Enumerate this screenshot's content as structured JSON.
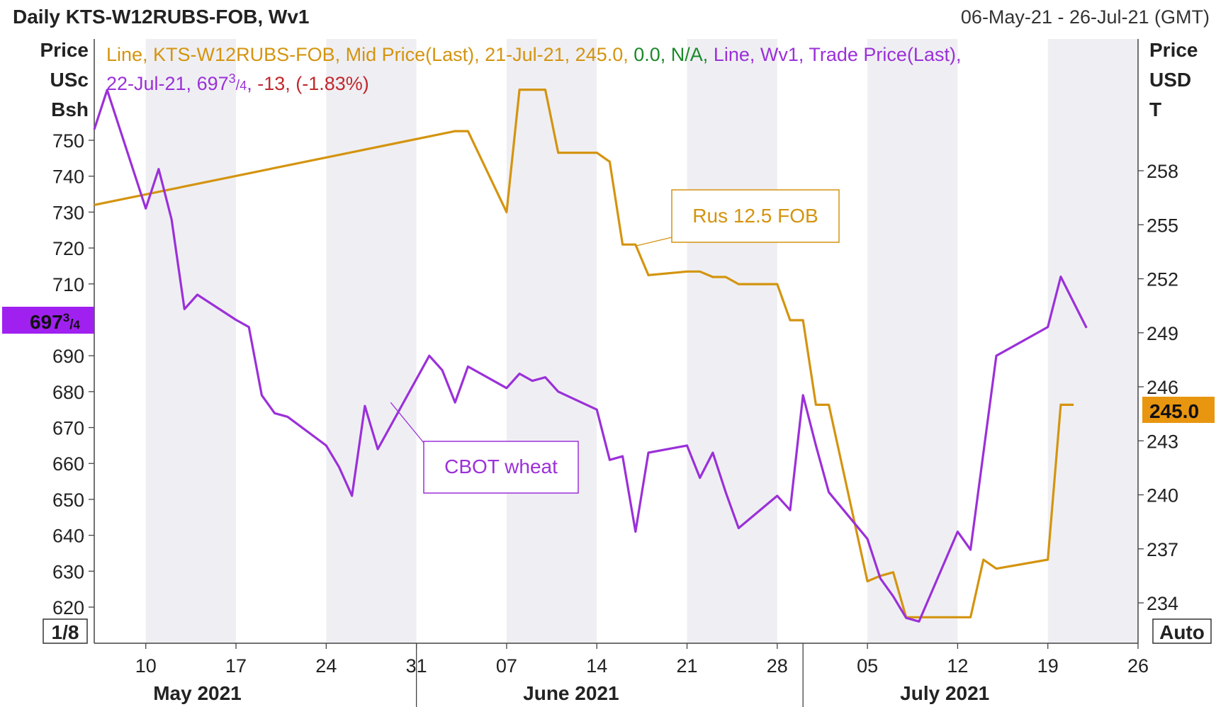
{
  "header": {
    "title": "Daily KTS-W12RUBS-FOB, Wv1",
    "date_range": "06-May-21 - 26-Jul-21 (GMT)"
  },
  "legend": {
    "line1": [
      {
        "text": "Line, KTS-W12RUBS-FOB, Mid Price(Last), 21-Jul-21, 245.0, ",
        "color": "#d4940f"
      },
      {
        "text": "0.0, N/A, ",
        "color": "#1a8a2a"
      },
      {
        "text": "Line, Wv1, Trade Price(Last),",
        "color": "#9b30d9"
      }
    ],
    "line2": [
      {
        "text": "22-Jul-21, 697",
        "color": "#9b30d9"
      },
      {
        "text": "-13, (-1.83%)",
        "color": "#c0282d"
      }
    ],
    "fraction_num": "3",
    "fraction_den": "4"
  },
  "left_axis": {
    "title_lines": [
      "Price",
      "USc",
      "Bsh"
    ],
    "corner_label": "1/8",
    "badge_int": "697",
    "badge_num": "3",
    "badge_den": "4",
    "badge_color": "#a020f0"
  },
  "right_axis": {
    "title_lines": [
      "Price",
      "USD",
      "T"
    ],
    "corner_label": "Auto",
    "badge": "245.0",
    "badge_color": "#e8950f"
  },
  "annotations": {
    "rus": "Rus 12.5 FOB",
    "cbot": "CBOT wheat"
  },
  "colors": {
    "wheat_line": "#9b30d9",
    "rus_line": "#d4940f",
    "band": "#efeff3",
    "axis": "#444444"
  },
  "chart_data": {
    "type": "line",
    "x_axis": {
      "range": [
        "2021-05-06",
        "2021-07-26"
      ],
      "tick_labels": [
        "10",
        "17",
        "24",
        "31",
        "07",
        "14",
        "21",
        "28",
        "05",
        "12",
        "19",
        "26"
      ],
      "tick_dates": [
        "2021-05-10",
        "2021-05-17",
        "2021-05-24",
        "2021-05-31",
        "2021-06-07",
        "2021-06-14",
        "2021-06-21",
        "2021-06-28",
        "2021-07-05",
        "2021-07-12",
        "2021-07-19",
        "2021-07-26"
      ],
      "month_labels": [
        "May 2021",
        "June 2021",
        "July 2021"
      ],
      "month_label_dates": [
        "2021-05-14",
        "2021-06-12",
        "2021-07-11"
      ],
      "month_boundaries": [
        "2021-05-31",
        "2021-06-30"
      ]
    },
    "left_axis": {
      "unit": "USc/Bsh",
      "ticks": [
        620,
        630,
        640,
        650,
        660,
        670,
        680,
        690,
        700,
        710,
        720,
        730,
        740,
        750
      ],
      "tick_labels": [
        "620",
        "630",
        "640",
        "650",
        "660",
        "670",
        "680",
        "690",
        "",
        "710",
        "720",
        "730",
        "740",
        "750"
      ]
    },
    "right_axis": {
      "unit": "USD/T",
      "ticks": [
        234,
        237,
        240,
        243,
        246,
        249,
        252,
        255,
        258
      ],
      "tick_labels": [
        "234",
        "237",
        "240",
        "243",
        "246",
        "249",
        "252",
        "255",
        "258"
      ]
    },
    "series": [
      {
        "name": "KTS-W12RUBS-FOB",
        "axis": "right",
        "color": "#d4940f",
        "points": [
          [
            "2021-05-06",
            256.1
          ],
          [
            "2021-06-03",
            260.2
          ],
          [
            "2021-06-04",
            260.2
          ],
          [
            "2021-06-07",
            255.7
          ],
          [
            "2021-06-08",
            262.5
          ],
          [
            "2021-06-10",
            262.5
          ],
          [
            "2021-06-11",
            259.0
          ],
          [
            "2021-06-14",
            259.0
          ],
          [
            "2021-06-15",
            258.5
          ],
          [
            "2021-06-16",
            253.9
          ],
          [
            "2021-06-17",
            253.9
          ],
          [
            "2021-06-18",
            252.2
          ],
          [
            "2021-06-21",
            252.4
          ],
          [
            "2021-06-22",
            252.4
          ],
          [
            "2021-06-23",
            252.1
          ],
          [
            "2021-06-24",
            252.1
          ],
          [
            "2021-06-25",
            251.7
          ],
          [
            "2021-06-28",
            251.7
          ],
          [
            "2021-06-29",
            249.7
          ],
          [
            "2021-06-30",
            249.7
          ],
          [
            "2021-07-01",
            245.0
          ],
          [
            "2021-07-02",
            245.0
          ],
          [
            "2021-07-05",
            235.2
          ],
          [
            "2021-07-06",
            235.5
          ],
          [
            "2021-07-07",
            235.7
          ],
          [
            "2021-07-08",
            233.2
          ],
          [
            "2021-07-12",
            233.2
          ],
          [
            "2021-07-13",
            233.2
          ],
          [
            "2021-07-14",
            236.4
          ],
          [
            "2021-07-15",
            235.9
          ],
          [
            "2021-07-19",
            236.4
          ],
          [
            "2021-07-20",
            245.0
          ],
          [
            "2021-07-21",
            245.0
          ]
        ]
      },
      {
        "name": "Wv1",
        "axis": "left",
        "color": "#9b30d9",
        "points": [
          [
            "2021-05-06",
            753
          ],
          [
            "2021-05-07",
            764
          ],
          [
            "2021-05-10",
            731
          ],
          [
            "2021-05-11",
            742
          ],
          [
            "2021-05-12",
            728
          ],
          [
            "2021-05-13",
            703
          ],
          [
            "2021-05-14",
            707
          ],
          [
            "2021-05-17",
            700
          ],
          [
            "2021-05-18",
            698
          ],
          [
            "2021-05-19",
            679
          ],
          [
            "2021-05-20",
            674
          ],
          [
            "2021-05-21",
            673
          ],
          [
            "2021-05-24",
            665
          ],
          [
            "2021-05-25",
            659
          ],
          [
            "2021-05-26",
            651
          ],
          [
            "2021-05-27",
            676
          ],
          [
            "2021-05-28",
            664
          ],
          [
            "2021-06-01",
            690
          ],
          [
            "2021-06-02",
            686
          ],
          [
            "2021-06-03",
            677
          ],
          [
            "2021-06-04",
            687
          ],
          [
            "2021-06-07",
            681
          ],
          [
            "2021-06-08",
            685
          ],
          [
            "2021-06-09",
            683
          ],
          [
            "2021-06-10",
            684
          ],
          [
            "2021-06-11",
            680
          ],
          [
            "2021-06-14",
            675
          ],
          [
            "2021-06-15",
            661
          ],
          [
            "2021-06-16",
            662
          ],
          [
            "2021-06-17",
            641
          ],
          [
            "2021-06-18",
            663
          ],
          [
            "2021-06-21",
            665
          ],
          [
            "2021-06-22",
            656
          ],
          [
            "2021-06-23",
            663
          ],
          [
            "2021-06-24",
            652
          ],
          [
            "2021-06-25",
            642
          ],
          [
            "2021-06-28",
            651
          ],
          [
            "2021-06-29",
            647
          ],
          [
            "2021-06-30",
            679
          ],
          [
            "2021-07-01",
            665
          ],
          [
            "2021-07-02",
            652
          ],
          [
            "2021-07-05",
            639
          ],
          [
            "2021-07-06",
            628
          ],
          [
            "2021-07-07",
            623
          ],
          [
            "2021-07-08",
            617
          ],
          [
            "2021-07-09",
            616
          ],
          [
            "2021-07-12",
            641
          ],
          [
            "2021-07-13",
            636
          ],
          [
            "2021-07-15",
            690
          ],
          [
            "2021-07-19",
            698
          ],
          [
            "2021-07-20",
            712
          ],
          [
            "2021-07-22",
            697.75
          ]
        ]
      }
    ]
  }
}
